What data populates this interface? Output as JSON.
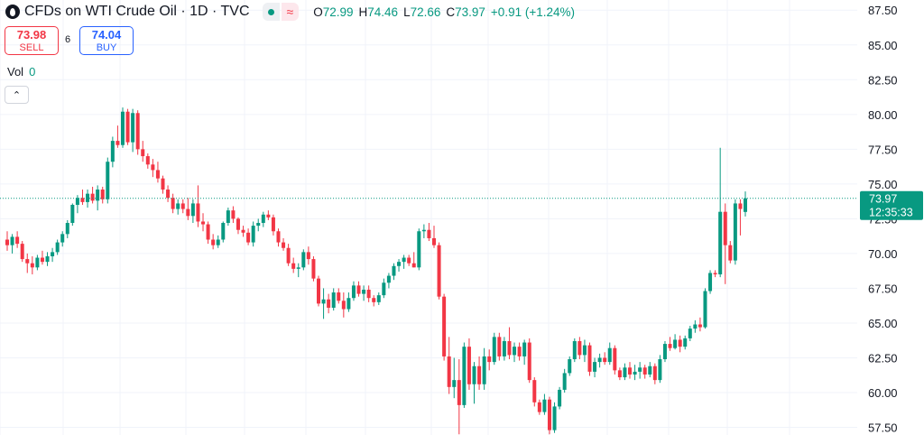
{
  "legend": {
    "icon": "oil-drop-icon",
    "title": "CFDs on WTI Crude Oil · 1D · TVC",
    "ohlc": [
      {
        "key": "O",
        "value": "72.99"
      },
      {
        "key": "H",
        "value": "74.46"
      },
      {
        "key": "L",
        "value": "72.66"
      },
      {
        "key": "C",
        "value": "73.97"
      }
    ],
    "change": "+0.91 (+1.24%)",
    "status_icon": "market-open-dot-icon",
    "wave_icon": "wave-icon",
    "wave_glyph": "≈"
  },
  "trade": {
    "sell_price": "73.98",
    "sell_label": "SELL",
    "spread": "6",
    "buy_price": "74.04",
    "buy_label": "BUY"
  },
  "volume": {
    "label": "Vol",
    "value": "0"
  },
  "collapse_glyph": "⌃",
  "price_tag": {
    "price": "73.97",
    "countdown": "12:35:33"
  },
  "colors": {
    "up": "#089981",
    "down": "#f23645",
    "grid": "#f0f3fa",
    "text": "#131722"
  },
  "chart_data": {
    "type": "candlestick",
    "title": "CFDs on WTI Crude Oil · 1D · TVC",
    "ylim": [
      56.95,
      88.23
    ],
    "y_ticks": [
      "87.50",
      "85.00",
      "82.50",
      "80.00",
      "77.50",
      "75.00",
      "72.50",
      "70.00",
      "67.50",
      "65.00",
      "62.50",
      "60.00",
      "57.50"
    ],
    "last_price": 73.97,
    "grid": true,
    "candles": [
      [
        71.0,
        71.6,
        70.2,
        70.6
      ],
      [
        70.6,
        71.4,
        70.0,
        71.2
      ],
      [
        71.2,
        71.6,
        70.4,
        70.7
      ],
      [
        70.7,
        70.9,
        69.4,
        69.6
      ],
      [
        69.6,
        70.0,
        68.6,
        69.3
      ],
      [
        69.3,
        69.8,
        68.5,
        69.0
      ],
      [
        69.0,
        69.9,
        68.8,
        69.7
      ],
      [
        69.7,
        70.2,
        69.2,
        69.4
      ],
      [
        69.4,
        70.1,
        69.1,
        69.8
      ],
      [
        69.8,
        70.4,
        69.4,
        70.1
      ],
      [
        70.1,
        71.0,
        69.9,
        70.8
      ],
      [
        70.8,
        71.6,
        70.5,
        71.4
      ],
      [
        71.4,
        72.4,
        71.1,
        72.2
      ],
      [
        72.2,
        73.6,
        72.0,
        73.5
      ],
      [
        73.5,
        74.2,
        72.9,
        74.0
      ],
      [
        74.0,
        74.6,
        73.5,
        73.7
      ],
      [
        73.7,
        74.6,
        73.3,
        74.3
      ],
      [
        74.3,
        74.8,
        73.6,
        73.8
      ],
      [
        73.8,
        74.9,
        73.1,
        74.6
      ],
      [
        74.6,
        74.8,
        73.6,
        73.9
      ],
      [
        73.9,
        76.9,
        73.6,
        76.6
      ],
      [
        76.6,
        78.4,
        76.2,
        78.1
      ],
      [
        78.1,
        79.2,
        77.6,
        77.8
      ],
      [
        77.8,
        80.5,
        77.6,
        80.2
      ],
      [
        80.2,
        80.4,
        77.8,
        78.0
      ],
      [
        78.0,
        80.4,
        77.3,
        80.1
      ],
      [
        80.1,
        80.3,
        77.1,
        77.5
      ],
      [
        77.5,
        78.1,
        76.6,
        77.0
      ],
      [
        77.0,
        77.2,
        76.1,
        76.4
      ],
      [
        76.4,
        76.8,
        75.5,
        76.0
      ],
      [
        76.0,
        76.6,
        75.1,
        75.4
      ],
      [
        75.4,
        75.6,
        74.3,
        74.6
      ],
      [
        74.6,
        74.9,
        73.7,
        74.0
      ],
      [
        74.0,
        74.3,
        72.9,
        73.2
      ],
      [
        73.2,
        73.9,
        72.8,
        73.6
      ],
      [
        73.6,
        73.9,
        72.9,
        73.2
      ],
      [
        73.2,
        74.0,
        72.4,
        72.7
      ],
      [
        72.7,
        73.9,
        72.2,
        73.6
      ],
      [
        73.6,
        74.9,
        71.9,
        72.3
      ],
      [
        72.3,
        72.9,
        71.6,
        72.1
      ],
      [
        72.1,
        72.3,
        70.7,
        71.0
      ],
      [
        71.0,
        71.4,
        70.3,
        70.6
      ],
      [
        70.6,
        71.3,
        70.4,
        71.0
      ],
      [
        71.0,
        72.3,
        70.8,
        72.2
      ],
      [
        72.2,
        73.3,
        72.0,
        73.1
      ],
      [
        73.1,
        73.4,
        72.2,
        72.5
      ],
      [
        72.5,
        72.6,
        71.4,
        71.7
      ],
      [
        71.7,
        72.0,
        71.2,
        71.5
      ],
      [
        71.5,
        71.8,
        70.6,
        70.8
      ],
      [
        70.8,
        72.3,
        70.5,
        72.0
      ],
      [
        72.0,
        72.5,
        71.6,
        72.2
      ],
      [
        72.2,
        73.0,
        71.9,
        72.8
      ],
      [
        72.8,
        73.1,
        72.4,
        72.6
      ],
      [
        72.6,
        72.8,
        71.3,
        71.6
      ],
      [
        71.6,
        71.8,
        70.5,
        70.8
      ],
      [
        70.8,
        71.1,
        70.2,
        70.4
      ],
      [
        70.4,
        70.7,
        69.1,
        69.3
      ],
      [
        69.3,
        69.7,
        68.6,
        68.9
      ],
      [
        68.9,
        69.3,
        68.3,
        69.0
      ],
      [
        69.0,
        70.3,
        68.8,
        70.1
      ],
      [
        70.1,
        70.5,
        69.2,
        69.6
      ],
      [
        69.6,
        69.8,
        68.0,
        68.2
      ],
      [
        68.2,
        68.4,
        66.2,
        66.4
      ],
      [
        66.4,
        67.5,
        65.3,
        66.7
      ],
      [
        66.7,
        67.1,
        65.7,
        66.1
      ],
      [
        66.1,
        67.5,
        65.9,
        67.2
      ],
      [
        67.2,
        67.5,
        66.4,
        66.6
      ],
      [
        66.6,
        67.2,
        65.4,
        66.0
      ],
      [
        66.0,
        67.2,
        65.8,
        66.8
      ],
      [
        66.8,
        68.0,
        66.6,
        67.7
      ],
      [
        67.7,
        68.0,
        66.9,
        67.1
      ],
      [
        67.1,
        67.7,
        66.6,
        67.4
      ],
      [
        67.4,
        67.7,
        66.5,
        66.8
      ],
      [
        66.8,
        67.0,
        66.2,
        66.5
      ],
      [
        66.5,
        67.2,
        66.3,
        67.0
      ],
      [
        67.0,
        68.2,
        66.8,
        67.9
      ],
      [
        67.9,
        68.6,
        67.5,
        68.4
      ],
      [
        68.4,
        69.3,
        68.1,
        69.1
      ],
      [
        69.1,
        69.6,
        68.7,
        69.4
      ],
      [
        69.4,
        69.9,
        68.9,
        69.7
      ],
      [
        69.7,
        69.9,
        69.1,
        69.3
      ],
      [
        69.3,
        70.1,
        69.0,
        69.0
      ],
      [
        69.0,
        71.8,
        68.8,
        71.6
      ],
      [
        71.6,
        72.1,
        71.1,
        71.7
      ],
      [
        71.7,
        72.2,
        70.9,
        71.1
      ],
      [
        71.1,
        72.0,
        70.4,
        70.6
      ],
      [
        70.6,
        70.8,
        66.7,
        66.9
      ],
      [
        66.9,
        67.1,
        62.3,
        62.6
      ],
      [
        62.6,
        64.0,
        59.9,
        60.4
      ],
      [
        60.4,
        62.5,
        59.6,
        60.9
      ],
      [
        60.9,
        62.4,
        57.0,
        59.1
      ],
      [
        59.1,
        63.6,
        58.9,
        63.3
      ],
      [
        63.3,
        63.9,
        60.2,
        60.6
      ],
      [
        60.6,
        62.2,
        59.2,
        61.9
      ],
      [
        61.9,
        62.6,
        60.2,
        60.6
      ],
      [
        60.6,
        63.2,
        60.2,
        62.6
      ],
      [
        62.6,
        63.1,
        61.6,
        62.2
      ],
      [
        62.2,
        64.3,
        62.0,
        64.0
      ],
      [
        64.0,
        64.3,
        62.3,
        62.6
      ],
      [
        62.6,
        64.0,
        62.3,
        63.7
      ],
      [
        63.7,
        64.7,
        62.4,
        62.7
      ],
      [
        62.7,
        63.6,
        62.2,
        63.3
      ],
      [
        63.3,
        63.6,
        62.3,
        62.6
      ],
      [
        62.6,
        63.8,
        62.0,
        63.6
      ],
      [
        63.6,
        63.9,
        60.7,
        60.9
      ],
      [
        60.9,
        61.1,
        59.0,
        59.3
      ],
      [
        59.3,
        59.5,
        58.4,
        58.6
      ],
      [
        58.6,
        59.9,
        58.4,
        59.5
      ],
      [
        59.5,
        59.7,
        57.0,
        57.3
      ],
      [
        57.3,
        59.3,
        57.1,
        59.0
      ],
      [
        59.0,
        60.4,
        58.8,
        60.2
      ],
      [
        60.2,
        61.7,
        60.0,
        61.4
      ],
      [
        61.4,
        62.6,
        61.2,
        62.4
      ],
      [
        62.4,
        63.9,
        62.2,
        63.7
      ],
      [
        63.7,
        64.0,
        62.4,
        62.7
      ],
      [
        62.7,
        63.8,
        62.2,
        63.4
      ],
      [
        63.4,
        63.6,
        61.2,
        61.5
      ],
      [
        61.5,
        62.5,
        61.1,
        62.2
      ],
      [
        62.2,
        62.8,
        61.8,
        62.5
      ],
      [
        62.5,
        62.9,
        62.0,
        62.2
      ],
      [
        62.2,
        63.6,
        62.0,
        63.2
      ],
      [
        63.2,
        63.4,
        61.3,
        61.6
      ],
      [
        61.6,
        61.8,
        60.9,
        61.1
      ],
      [
        61.1,
        62.1,
        60.9,
        61.8
      ],
      [
        61.8,
        62.2,
        61.0,
        61.3
      ],
      [
        61.3,
        62.0,
        60.9,
        61.5
      ],
      [
        61.5,
        62.2,
        61.0,
        61.8
      ],
      [
        61.8,
        62.0,
        61.0,
        61.3
      ],
      [
        61.3,
        62.2,
        61.1,
        61.9
      ],
      [
        61.9,
        62.1,
        60.6,
        60.9
      ],
      [
        60.9,
        62.7,
        60.7,
        62.4
      ],
      [
        62.4,
        63.7,
        62.2,
        63.5
      ],
      [
        63.5,
        64.0,
        63.0,
        63.2
      ],
      [
        63.2,
        64.2,
        63.1,
        63.8
      ],
      [
        63.8,
        64.1,
        62.9,
        63.3
      ],
      [
        63.3,
        64.1,
        63.1,
        63.9
      ],
      [
        63.9,
        64.8,
        63.7,
        64.6
      ],
      [
        64.6,
        65.2,
        64.3,
        64.9
      ],
      [
        64.9,
        65.4,
        64.4,
        64.7
      ],
      [
        64.7,
        67.5,
        64.6,
        67.3
      ],
      [
        67.3,
        68.8,
        67.1,
        68.6
      ],
      [
        68.6,
        68.8,
        68.3,
        68.5
      ],
      [
        68.5,
        77.6,
        68.3,
        73.0
      ],
      [
        73.0,
        73.6,
        67.8,
        70.6
      ],
      [
        70.6,
        70.9,
        69.3,
        69.5
      ],
      [
        69.5,
        73.9,
        69.2,
        73.6
      ],
      [
        73.6,
        73.9,
        71.3,
        73.2
      ],
      [
        72.99,
        74.46,
        72.66,
        73.97
      ]
    ]
  }
}
